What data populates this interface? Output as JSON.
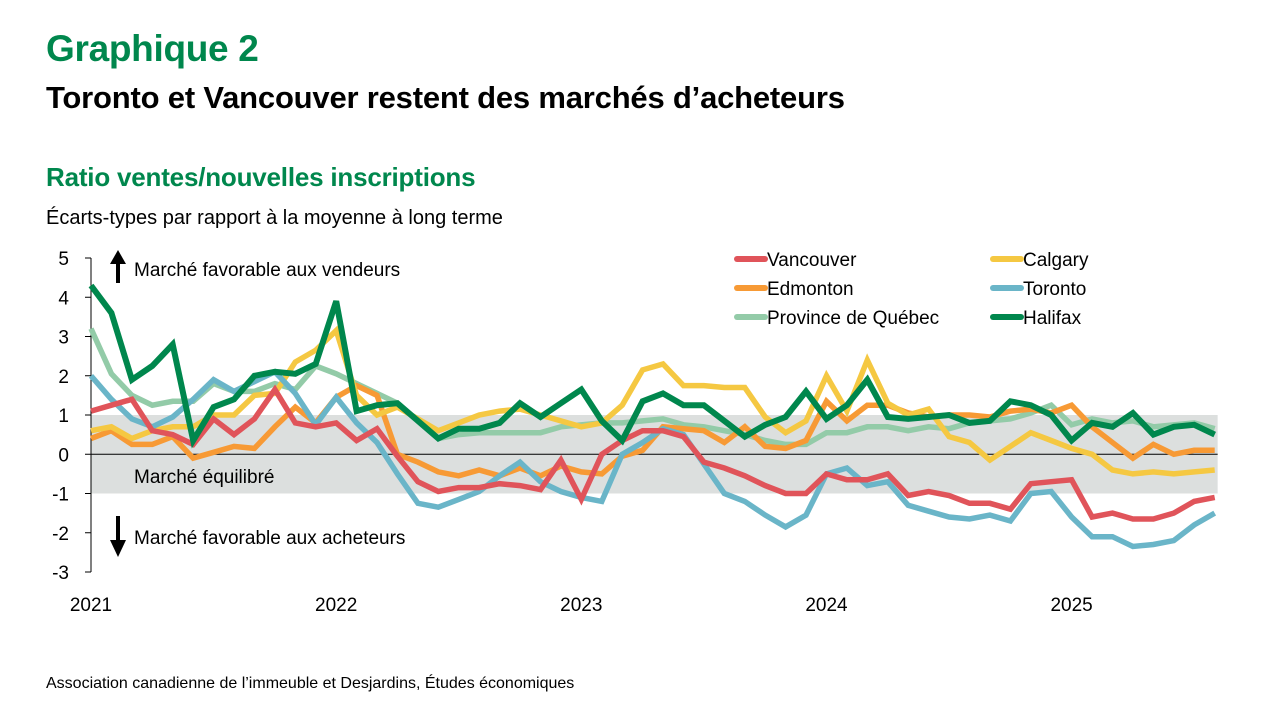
{
  "header": {
    "figure_label": "Graphique 2",
    "title": "Toronto et Vancouver restent des marchés d’acheteurs"
  },
  "footer": {
    "source": "Association canadienne de l’immeuble et Desjardins, Études économiques"
  },
  "chart_data": {
    "type": "line",
    "title": "Ratio ventes/nouvelles inscriptions",
    "subtitle": "Écarts-types par rapport à la moyenne à long terme",
    "xlabel": "",
    "ylabel": "",
    "x_start": "2021-01",
    "x_frequency": "monthly",
    "x_tick_labels": [
      "2021",
      "2022",
      "2023",
      "2024",
      "2025"
    ],
    "ylim": [
      -3,
      5
    ],
    "y_ticks": [
      5,
      4,
      3,
      2,
      1,
      0,
      -1,
      -2,
      -3
    ],
    "y_tick_labels": [
      "5",
      "4",
      "3",
      "2",
      "1",
      "0",
      "-1",
      "-2",
      "-3"
    ],
    "grid": false,
    "legend_position": "top-right",
    "shaded_band": {
      "from": -1,
      "to": 1,
      "label": "Marché équilibré",
      "color": "#DCDFDE"
    },
    "annotations": [
      {
        "text": "Marché favorable aux vendeurs",
        "direction": "up"
      },
      {
        "text": "Marché favorable aux acheteurs",
        "direction": "down"
      }
    ],
    "series": [
      {
        "name": "Vancouver",
        "color": "#E0545A",
        "values": [
          1.1,
          1.25,
          1.4,
          0.6,
          0.5,
          0.25,
          0.9,
          0.5,
          0.9,
          1.65,
          0.8,
          0.7,
          0.8,
          0.35,
          0.65,
          -0.05,
          -0.7,
          -0.95,
          -0.85,
          -0.85,
          -0.75,
          -0.8,
          -0.9,
          -0.15,
          -1.15,
          0.0,
          0.35,
          0.6,
          0.6,
          0.45,
          -0.2,
          -0.35,
          -0.55,
          -0.8,
          -1.0,
          -1.0,
          -0.5,
          -0.65,
          -0.65,
          -0.5,
          -1.05,
          -0.95,
          -1.05,
          -1.25,
          -1.25,
          -1.4,
          -0.75,
          -0.7,
          -0.65,
          -1.6,
          -1.5,
          -1.65,
          -1.65,
          -1.5,
          -1.2,
          -1.1
        ]
      },
      {
        "name": "Calgary",
        "color": "#F5C842",
        "values": [
          0.6,
          0.7,
          0.4,
          0.6,
          0.7,
          0.7,
          1.0,
          1.0,
          1.5,
          1.55,
          2.35,
          2.65,
          3.15,
          1.5,
          1.0,
          1.2,
          0.9,
          0.6,
          0.8,
          1.0,
          1.1,
          1.15,
          1.0,
          0.85,
          0.7,
          0.8,
          1.25,
          2.15,
          2.3,
          1.75,
          1.75,
          1.7,
          1.7,
          0.95,
          0.55,
          0.85,
          2.0,
          1.1,
          2.4,
          1.3,
          1.0,
          1.15,
          0.45,
          0.3,
          -0.15,
          0.2,
          0.55,
          0.35,
          0.15,
          0.0,
          -0.4,
          -0.5,
          -0.45,
          -0.5,
          -0.45,
          -0.4
        ]
      },
      {
        "name": "Edmonton",
        "color": "#F79A35",
        "values": [
          0.4,
          0.6,
          0.25,
          0.25,
          0.45,
          -0.1,
          0.05,
          0.2,
          0.15,
          0.7,
          1.2,
          0.8,
          1.45,
          1.75,
          1.5,
          0.0,
          -0.2,
          -0.45,
          -0.55,
          -0.4,
          -0.55,
          -0.35,
          -0.55,
          -0.3,
          -0.45,
          -0.5,
          -0.05,
          0.1,
          0.7,
          0.65,
          0.6,
          0.3,
          0.7,
          0.2,
          0.15,
          0.35,
          1.35,
          0.85,
          1.25,
          1.25,
          1.05,
          0.95,
          1.0,
          1.0,
          0.95,
          1.1,
          1.15,
          1.05,
          1.25,
          0.7,
          0.3,
          -0.1,
          0.25,
          0.0,
          0.1,
          0.1
        ]
      },
      {
        "name": "Toronto",
        "color": "#6AB5C8",
        "values": [
          2.0,
          1.4,
          0.9,
          0.7,
          0.95,
          1.4,
          1.9,
          1.6,
          1.85,
          2.1,
          1.55,
          0.75,
          1.45,
          0.8,
          0.3,
          -0.5,
          -1.25,
          -1.35,
          -1.15,
          -0.95,
          -0.55,
          -0.2,
          -0.7,
          -0.95,
          -1.1,
          -1.2,
          0.0,
          0.3,
          0.65,
          0.5,
          -0.25,
          -1.0,
          -1.2,
          -1.55,
          -1.85,
          -1.55,
          -0.5,
          -0.35,
          -0.8,
          -0.7,
          -1.3,
          -1.45,
          -1.6,
          -1.65,
          -1.55,
          -1.7,
          -1.0,
          -0.95,
          -1.6,
          -2.1,
          -2.1,
          -2.35,
          -2.3,
          -2.2,
          -1.8,
          -1.5
        ]
      },
      {
        "name": "Province de Québec",
        "color": "#93CBA8",
        "values": [
          3.2,
          2.05,
          1.5,
          1.25,
          1.35,
          1.35,
          1.8,
          1.6,
          1.6,
          1.8,
          1.65,
          2.25,
          2.05,
          1.8,
          1.55,
          1.3,
          0.85,
          0.4,
          0.5,
          0.55,
          0.55,
          0.55,
          0.55,
          0.7,
          0.75,
          0.8,
          0.8,
          0.85,
          0.9,
          0.75,
          0.7,
          0.6,
          0.5,
          0.35,
          0.25,
          0.25,
          0.55,
          0.55,
          0.7,
          0.7,
          0.6,
          0.7,
          0.65,
          0.8,
          0.85,
          0.9,
          1.05,
          1.25,
          0.75,
          0.9,
          0.8,
          0.85,
          0.7,
          0.75,
          0.8,
          0.65
        ]
      },
      {
        "name": "Halifax",
        "color": "#00874D",
        "values": [
          4.3,
          3.6,
          1.9,
          2.25,
          2.8,
          0.35,
          1.2,
          1.4,
          2.0,
          2.1,
          2.05,
          2.3,
          3.9,
          1.1,
          1.25,
          1.3,
          0.85,
          0.4,
          0.65,
          0.65,
          0.8,
          1.3,
          0.95,
          1.3,
          1.65,
          0.85,
          0.35,
          1.35,
          1.55,
          1.25,
          1.25,
          0.85,
          0.45,
          0.75,
          0.95,
          1.6,
          0.9,
          1.25,
          1.9,
          0.95,
          0.9,
          0.95,
          1.0,
          0.8,
          0.85,
          1.35,
          1.25,
          1.0,
          0.35,
          0.8,
          0.7,
          1.05,
          0.5,
          0.7,
          0.75,
          0.5
        ]
      }
    ]
  }
}
